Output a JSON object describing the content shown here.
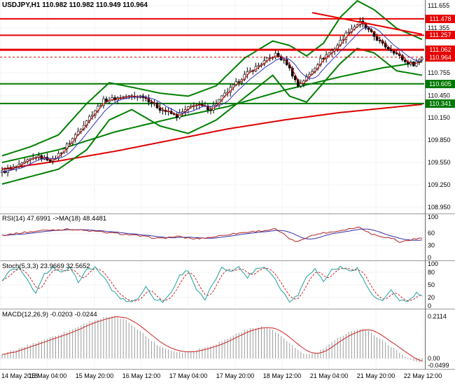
{
  "title": "USDJPY,H1 110.982 110.982 110.949 110.964",
  "chart_data": {
    "type": "candlestick",
    "symbol": "USDJPY",
    "timeframe": "H1",
    "quote": {
      "open": "110.982",
      "high": "110.982",
      "low": "110.949",
      "close": "110.964"
    },
    "price_axis_labels": [
      "111.655",
      "111.355",
      "110.755",
      "110.450",
      "110.150",
      "109.850",
      "109.550",
      "109.250",
      "108.950"
    ],
    "x_labels": [
      "14 May 2018",
      "15 May 04:00",
      "15 May 20:00",
      "16 May 12:00",
      "17 May 04:00",
      "17 May 20:00",
      "18 May 12:00",
      "21 May 04:00",
      "21 May 20:00",
      "22 May 12:00"
    ],
    "levels": {
      "resistance": [
        "111.478",
        "111.257",
        "111.062"
      ],
      "support": [
        "110.605",
        "110.341"
      ],
      "current": "110.964"
    },
    "bars": 150,
    "close_path": [
      [
        0,
        109.42
      ],
      [
        6,
        109.5
      ],
      [
        12,
        109.63
      ],
      [
        18,
        109.58
      ],
      [
        24,
        109.82
      ],
      [
        30,
        110.12
      ],
      [
        36,
        110.38
      ],
      [
        43,
        110.43
      ],
      [
        50,
        110.44
      ],
      [
        56,
        110.27
      ],
      [
        62,
        110.17
      ],
      [
        68,
        110.33
      ],
      [
        74,
        110.27
      ],
      [
        80,
        110.5
      ],
      [
        86,
        110.72
      ],
      [
        92,
        110.88
      ],
      [
        97,
        111.0
      ],
      [
        101,
        110.88
      ],
      [
        105,
        110.58
      ],
      [
        109,
        110.73
      ],
      [
        113,
        110.93
      ],
      [
        118,
        111.08
      ],
      [
        123,
        111.32
      ],
      [
        127,
        111.43
      ],
      [
        131,
        111.28
      ],
      [
        135,
        111.13
      ],
      [
        139,
        111.04
      ],
      [
        143,
        110.9
      ],
      [
        146,
        110.87
      ],
      [
        149,
        110.96
      ]
    ],
    "overlays": {
      "bollinger_upper": [
        [
          0,
          109.64
        ],
        [
          10,
          109.76
        ],
        [
          20,
          109.92
        ],
        [
          30,
          110.34
        ],
        [
          38,
          110.62
        ],
        [
          46,
          110.56
        ],
        [
          56,
          110.48
        ],
        [
          66,
          110.44
        ],
        [
          76,
          110.58
        ],
        [
          86,
          110.95
        ],
        [
          96,
          111.18
        ],
        [
          102,
          111.12
        ],
        [
          108,
          110.98
        ],
        [
          114,
          111.15
        ],
        [
          120,
          111.5
        ],
        [
          126,
          111.72
        ],
        [
          132,
          111.6
        ],
        [
          140,
          111.35
        ],
        [
          149,
          111.2
        ]
      ],
      "bollinger_lower": [
        [
          0,
          109.26
        ],
        [
          10,
          109.36
        ],
        [
          20,
          109.46
        ],
        [
          30,
          109.72
        ],
        [
          38,
          110.12
        ],
        [
          46,
          110.26
        ],
        [
          56,
          110.04
        ],
        [
          66,
          109.94
        ],
        [
          76,
          110.12
        ],
        [
          86,
          110.42
        ],
        [
          96,
          110.72
        ],
        [
          102,
          110.44
        ],
        [
          108,
          110.36
        ],
        [
          114,
          110.62
        ],
        [
          120,
          110.88
        ],
        [
          126,
          111.08
        ],
        [
          132,
          111.02
        ],
        [
          140,
          110.78
        ],
        [
          149,
          110.72
        ]
      ],
      "ma_green_slow": [
        [
          0,
          109.55
        ],
        [
          20,
          109.72
        ],
        [
          40,
          109.96
        ],
        [
          60,
          110.14
        ],
        [
          80,
          110.3
        ],
        [
          100,
          110.52
        ],
        [
          120,
          110.7
        ],
        [
          135,
          110.82
        ],
        [
          149,
          110.9
        ]
      ],
      "ma_red_slow": [
        [
          0,
          109.46
        ],
        [
          20,
          109.57
        ],
        [
          40,
          109.7
        ],
        [
          60,
          109.85
        ],
        [
          80,
          110.0
        ],
        [
          100,
          110.12
        ],
        [
          120,
          110.22
        ],
        [
          149,
          110.33
        ]
      ],
      "trendline_red": [
        [
          110,
          111.56
        ],
        [
          149,
          111.27
        ]
      ]
    },
    "indicators": {
      "rsi": {
        "label": "RSI(14) 47.6991 ->MA(18) 48.4481",
        "current": "47.6991",
        "ma_current": "48.4481",
        "levels": [
          "100",
          "60",
          "30",
          "0"
        ],
        "path": [
          [
            0,
            55
          ],
          [
            8,
            62
          ],
          [
            16,
            68
          ],
          [
            24,
            70
          ],
          [
            32,
            65
          ],
          [
            40,
            60
          ],
          [
            48,
            54
          ],
          [
            56,
            47
          ],
          [
            62,
            52
          ],
          [
            68,
            46
          ],
          [
            74,
            50
          ],
          [
            80,
            57
          ],
          [
            86,
            62
          ],
          [
            92,
            66
          ],
          [
            97,
            70
          ],
          [
            101,
            52
          ],
          [
            104,
            38
          ],
          [
            108,
            50
          ],
          [
            113,
            60
          ],
          [
            118,
            64
          ],
          [
            123,
            71
          ],
          [
            127,
            75
          ],
          [
            131,
            58
          ],
          [
            135,
            52
          ],
          [
            139,
            46
          ],
          [
            141,
            38
          ],
          [
            145,
            44
          ],
          [
            149,
            48
          ]
        ]
      },
      "stoch": {
        "label": "Stoch(5,3,3) 23.9669 32.5652",
        "k_current": "23.9669",
        "d_current": "32.5652",
        "levels": [
          "100",
          "80",
          "50",
          "20",
          "0"
        ],
        "k_path": [
          [
            0,
            60
          ],
          [
            3,
            85
          ],
          [
            6,
            90
          ],
          [
            9,
            60
          ],
          [
            12,
            30
          ],
          [
            15,
            75
          ],
          [
            18,
            92
          ],
          [
            21,
            78
          ],
          [
            24,
            90
          ],
          [
            27,
            58
          ],
          [
            30,
            85
          ],
          [
            33,
            92
          ],
          [
            36,
            68
          ],
          [
            39,
            38
          ],
          [
            42,
            18
          ],
          [
            45,
            10
          ],
          [
            48,
            16
          ],
          [
            51,
            45
          ],
          [
            54,
            18
          ],
          [
            57,
            10
          ],
          [
            60,
            32
          ],
          [
            63,
            72
          ],
          [
            66,
            86
          ],
          [
            69,
            38
          ],
          [
            72,
            14
          ],
          [
            75,
            55
          ],
          [
            78,
            90
          ],
          [
            81,
            84
          ],
          [
            84,
            92
          ],
          [
            87,
            68
          ],
          [
            90,
            88
          ],
          [
            93,
            93
          ],
          [
            96,
            74
          ],
          [
            99,
            38
          ],
          [
            102,
            12
          ],
          [
            105,
            26
          ],
          [
            108,
            72
          ],
          [
            111,
            88
          ],
          [
            114,
            58
          ],
          [
            117,
            86
          ],
          [
            120,
            92
          ],
          [
            123,
            84
          ],
          [
            126,
            90
          ],
          [
            129,
            52
          ],
          [
            132,
            20
          ],
          [
            135,
            12
          ],
          [
            138,
            36
          ],
          [
            141,
            14
          ],
          [
            144,
            10
          ],
          [
            147,
            30
          ],
          [
            149,
            24
          ]
        ]
      },
      "macd": {
        "label": "MACD(12,26,9) -0.0203 -0.0244",
        "macd_current": "-0.0203",
        "signal_current": "-0.0244",
        "scale_labels": [
          "0.2114",
          "0.00",
          "-0.0499"
        ],
        "hist_path": [
          [
            0,
            0.02
          ],
          [
            6,
            0.05
          ],
          [
            12,
            0.08
          ],
          [
            18,
            0.11
          ],
          [
            24,
            0.14
          ],
          [
            30,
            0.18
          ],
          [
            36,
            0.205
          ],
          [
            40,
            0.211
          ],
          [
            44,
            0.19
          ],
          [
            48,
            0.15
          ],
          [
            52,
            0.1
          ],
          [
            56,
            0.06
          ],
          [
            60,
            0.04
          ],
          [
            64,
            0.03
          ],
          [
            68,
            0.04
          ],
          [
            72,
            0.055
          ],
          [
            76,
            0.075
          ],
          [
            80,
            0.1
          ],
          [
            84,
            0.13
          ],
          [
            88,
            0.15
          ],
          [
            92,
            0.16
          ],
          [
            96,
            0.145
          ],
          [
            100,
            0.1
          ],
          [
            104,
            0.05
          ],
          [
            108,
            0.02
          ],
          [
            112,
            0.03
          ],
          [
            116,
            0.07
          ],
          [
            120,
            0.11
          ],
          [
            124,
            0.14
          ],
          [
            128,
            0.15
          ],
          [
            132,
            0.12
          ],
          [
            136,
            0.08
          ],
          [
            140,
            0.04
          ],
          [
            144,
            0.0
          ],
          [
            147,
            -0.018
          ],
          [
            149,
            -0.02
          ]
        ]
      }
    },
    "colors": {
      "bull": "#ffffff",
      "bear": "#000000",
      "wick": "#000000",
      "band_green": "#008000",
      "ma_red_slow": "#dd0000",
      "ma_fast_red": "#cc0000",
      "ma_fast_blue": "#3333bb",
      "resistance": "#e60000",
      "support": "#007800",
      "current_line": "#e60000",
      "trendline": "#e60000",
      "rsi": "#b22222",
      "rsi_ma": "#3333aa",
      "stoch_k": "#20a0a0",
      "stoch_d": "#cc2222",
      "macd_hist": "#9a9a9a",
      "macd_signal": "#cc2222",
      "grid": "#dcdcdc",
      "separator": "#9a9a9a",
      "axis_text": "#000000"
    }
  }
}
